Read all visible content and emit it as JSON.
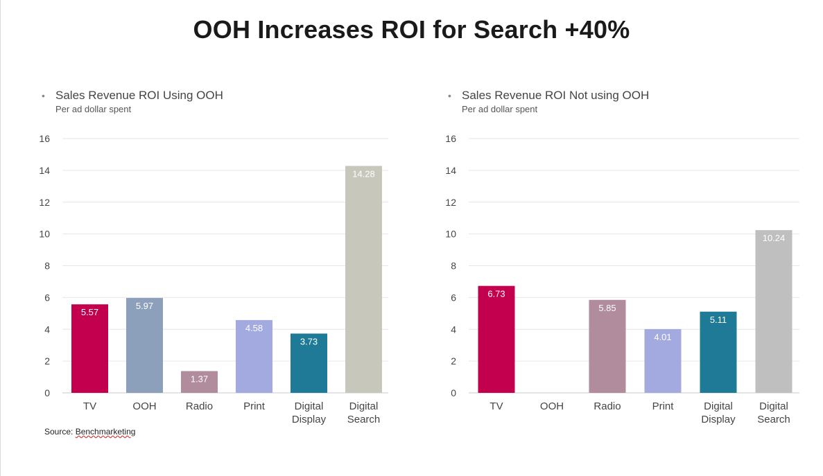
{
  "title": "OOH Increases ROI for Search +40%",
  "source": {
    "prefix": "Source: ",
    "name": "Benchmarketing"
  },
  "chart_data": [
    {
      "type": "bar",
      "title": "Sales Revenue ROI Using OOH",
      "subtitle": "Per ad dollar spent",
      "categories": [
        [
          "TV"
        ],
        [
          "OOH"
        ],
        [
          "Radio"
        ],
        [
          "Print"
        ],
        [
          "Digital",
          "Display"
        ],
        [
          "Digital",
          "Search"
        ]
      ],
      "values": [
        5.57,
        5.97,
        1.37,
        4.58,
        3.73,
        14.28
      ],
      "labels": [
        "5.57",
        "5.97",
        "1.37",
        "4.58",
        "3.73",
        "14.28"
      ],
      "colors": [
        "#c2004d",
        "#8da0bb",
        "#b08c9c",
        "#a3aadf",
        "#1f7a98",
        "#c7c7bb"
      ],
      "ylim": [
        0,
        16
      ],
      "yticks": [
        0,
        2,
        4,
        6,
        8,
        10,
        12,
        14,
        16
      ],
      "grid": true
    },
    {
      "type": "bar",
      "title": "Sales Revenue ROI Not using OOH",
      "subtitle": "Per ad dollar spent",
      "categories": [
        [
          "TV"
        ],
        [
          "OOH"
        ],
        [
          "Radio"
        ],
        [
          "Print"
        ],
        [
          "Digital",
          "Display"
        ],
        [
          "Digital",
          "Search"
        ]
      ],
      "values": [
        6.73,
        null,
        5.85,
        4.01,
        5.11,
        10.24
      ],
      "labels": [
        "6.73",
        "",
        "5.85",
        "4.01",
        "5.11",
        "10.24"
      ],
      "colors": [
        "#c2004d",
        "#8da0bb",
        "#b08c9c",
        "#a3aadf",
        "#1f7a98",
        "#bfbfbf"
      ],
      "ylim": [
        0,
        16
      ],
      "yticks": [
        0,
        2,
        4,
        6,
        8,
        10,
        12,
        14,
        16
      ],
      "grid": true
    }
  ]
}
